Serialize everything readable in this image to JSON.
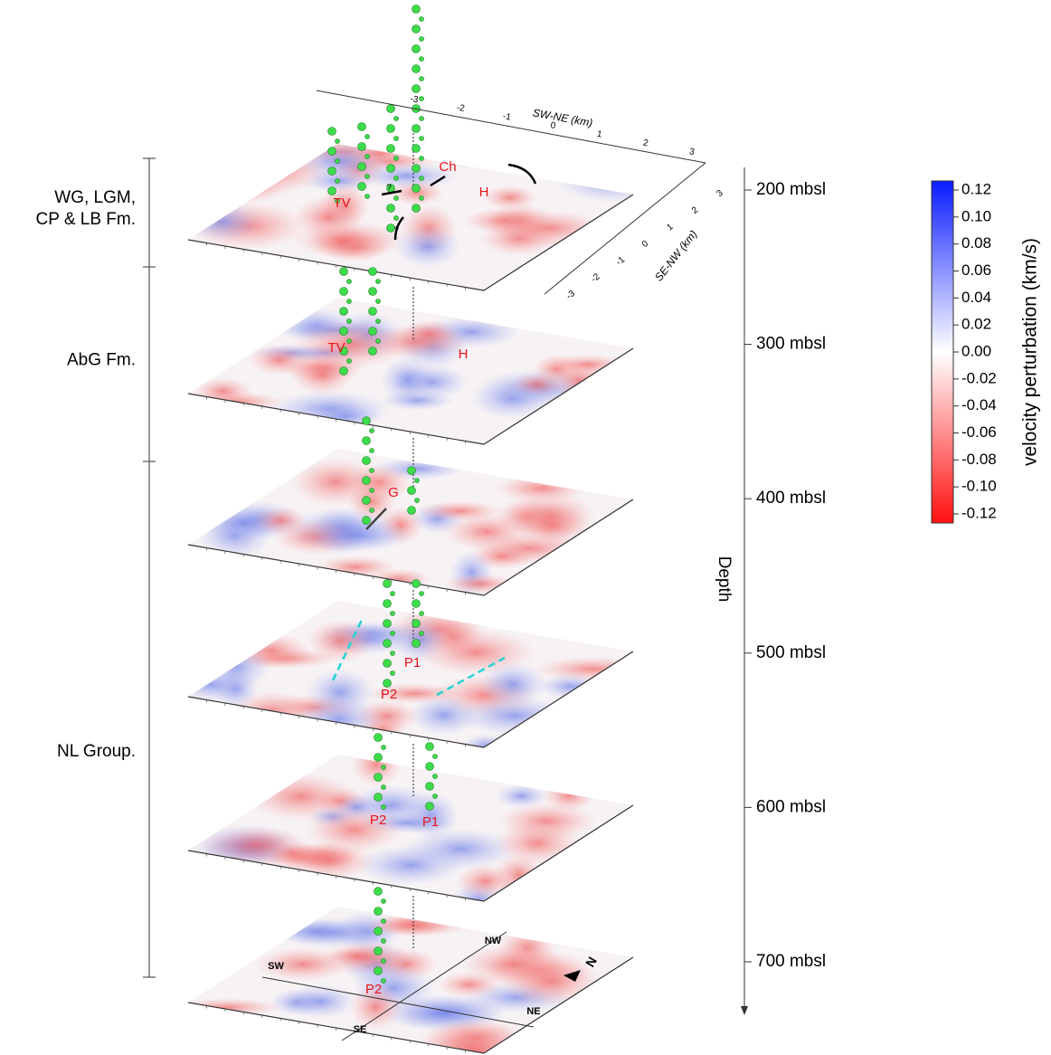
{
  "formations": [
    {
      "lines": [
        "WG, LGM,",
        "CP & LB Fm."
      ]
    },
    {
      "lines": [
        "AbG Fm."
      ]
    },
    {
      "lines": [
        "NL Group."
      ]
    }
  ],
  "top_axes": {
    "sw_ne_label": "SW-NE (km)",
    "sw_ne_ticks": [
      -3,
      -2,
      -1,
      0,
      1,
      2,
      3
    ],
    "se_nw_label": "SE-NW (km)",
    "se_nw_ticks": [
      3,
      2,
      1,
      0,
      -1,
      -2,
      -3
    ]
  },
  "slices": [
    {
      "annotations": [
        "TV",
        "Ch",
        "H",
        "?",
        "?"
      ]
    },
    {
      "annotations": [
        "TV",
        "H"
      ]
    },
    {
      "annotations": [
        "G"
      ]
    },
    {
      "annotations": [
        "P1",
        "P2"
      ]
    },
    {
      "annotations": [
        "P2",
        "P1"
      ]
    },
    {
      "annotations": [
        "P2"
      ]
    }
  ],
  "compass": [
    "SW",
    "NW",
    "NE",
    "SE",
    "N"
  ],
  "depth_axis": {
    "label": "Depth",
    "ticks": [
      {
        "value": 200,
        "label": "200 mbsl"
      },
      {
        "value": 300,
        "label": "300 mbsl"
      },
      {
        "value": 400,
        "label": "400 mbsl"
      },
      {
        "value": 500,
        "label": "500 mbsl"
      },
      {
        "value": 600,
        "label": "600 mbsl"
      },
      {
        "value": 700,
        "label": "700 mbsl"
      }
    ]
  },
  "colorbar": {
    "label": "velocity perturbation (km/s)",
    "ticks": [
      {
        "value": 0.12,
        "label": "0.12"
      },
      {
        "value": 0.1,
        "label": "0.10"
      },
      {
        "value": 0.08,
        "label": "0.08"
      },
      {
        "value": 0.06,
        "label": "0.06"
      },
      {
        "value": 0.04,
        "label": "0.04"
      },
      {
        "value": 0.02,
        "label": "0.02"
      },
      {
        "value": 0.0,
        "label": "0.00"
      },
      {
        "value": -0.02,
        "label": "-0.02"
      },
      {
        "value": -0.04,
        "label": "-0.04"
      },
      {
        "value": -0.06,
        "label": "-0.06"
      },
      {
        "value": -0.08,
        "label": "-0.08"
      },
      {
        "value": -0.1,
        "label": "-0.10"
      },
      {
        "value": -0.12,
        "label": "-0.12"
      }
    ]
  }
}
